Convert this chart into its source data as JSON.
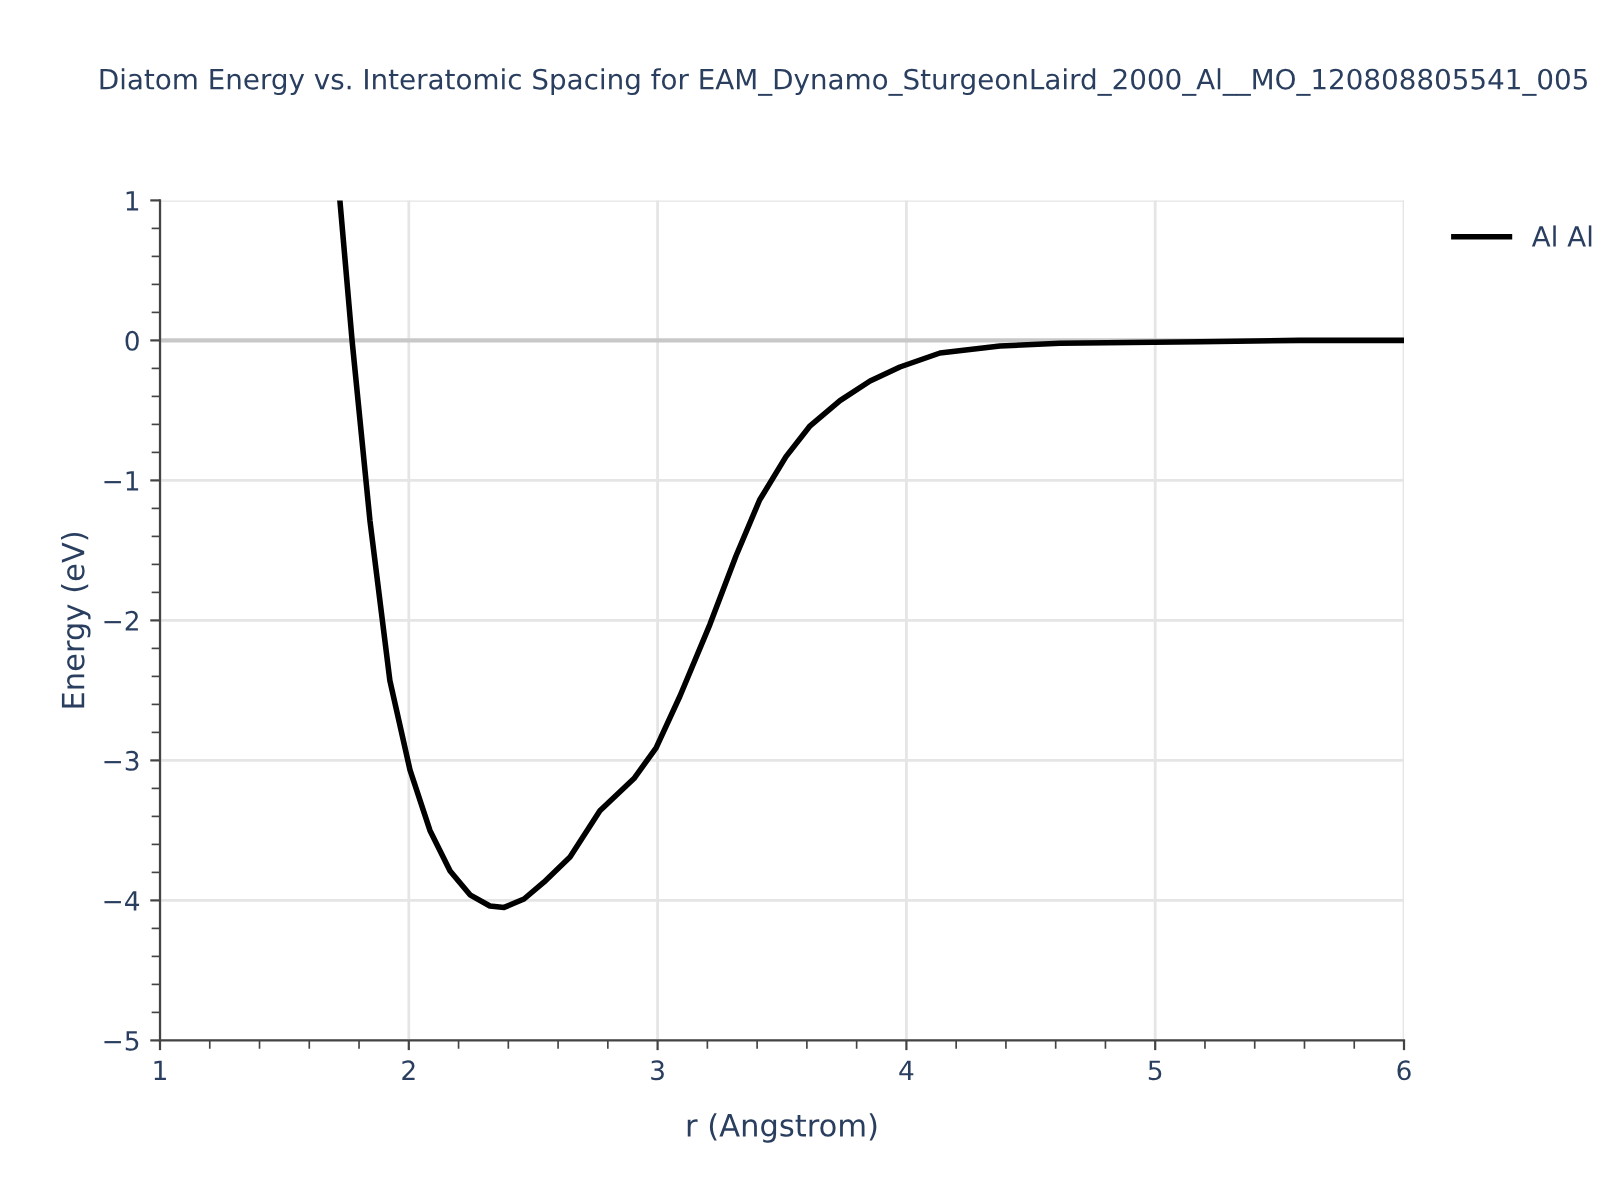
{
  "chart_data": {
    "type": "line",
    "title": "Diatom Energy vs. Interatomic Spacing for EAM_Dynamo_SturgeonLaird_2000_Al__MO_120808805541_005",
    "xlabel": "r (Angstrom)",
    "ylabel": "Energy (eV)",
    "xlim": [
      1,
      6
    ],
    "ylim": [
      -5,
      1
    ],
    "xticks": [
      1,
      2,
      3,
      4,
      5,
      6
    ],
    "yticks": [
      {
        "value": -5,
        "label": "−5"
      },
      {
        "value": -4,
        "label": "−4"
      },
      {
        "value": -3,
        "label": "−3"
      },
      {
        "value": -2,
        "label": "−2"
      },
      {
        "value": -1,
        "label": "−1"
      },
      0,
      1
    ],
    "grid": true,
    "legend": "top right",
    "line_style": "solid",
    "ref_lines": [
      {
        "axis": "y",
        "value": 0,
        "color": "#c8c8c8"
      }
    ],
    "series": [
      {
        "name": "Al Al",
        "color": "#000000",
        "x": [
          1.723,
          1.772,
          1.844,
          1.924,
          2.005,
          2.085,
          2.166,
          2.246,
          2.326,
          2.383,
          2.463,
          2.543,
          2.648,
          2.768,
          2.905,
          2.994,
          3.09,
          3.21,
          3.315,
          3.41,
          3.516,
          3.613,
          3.733,
          3.854,
          3.974,
          4.135,
          4.376,
          4.617,
          5.18,
          5.58,
          6.0
        ],
        "values": [
          1.0,
          0.0,
          -1.29,
          -2.43,
          -3.07,
          -3.5,
          -3.79,
          -3.96,
          -4.04,
          -4.05,
          -3.99,
          -3.87,
          -3.69,
          -3.36,
          -3.13,
          -2.91,
          -2.54,
          -2.03,
          -1.54,
          -1.14,
          -0.83,
          -0.61,
          -0.43,
          -0.29,
          -0.19,
          -0.09,
          -0.04,
          -0.02,
          -0.01,
          0.0,
          0.0
        ]
      }
    ]
  }
}
